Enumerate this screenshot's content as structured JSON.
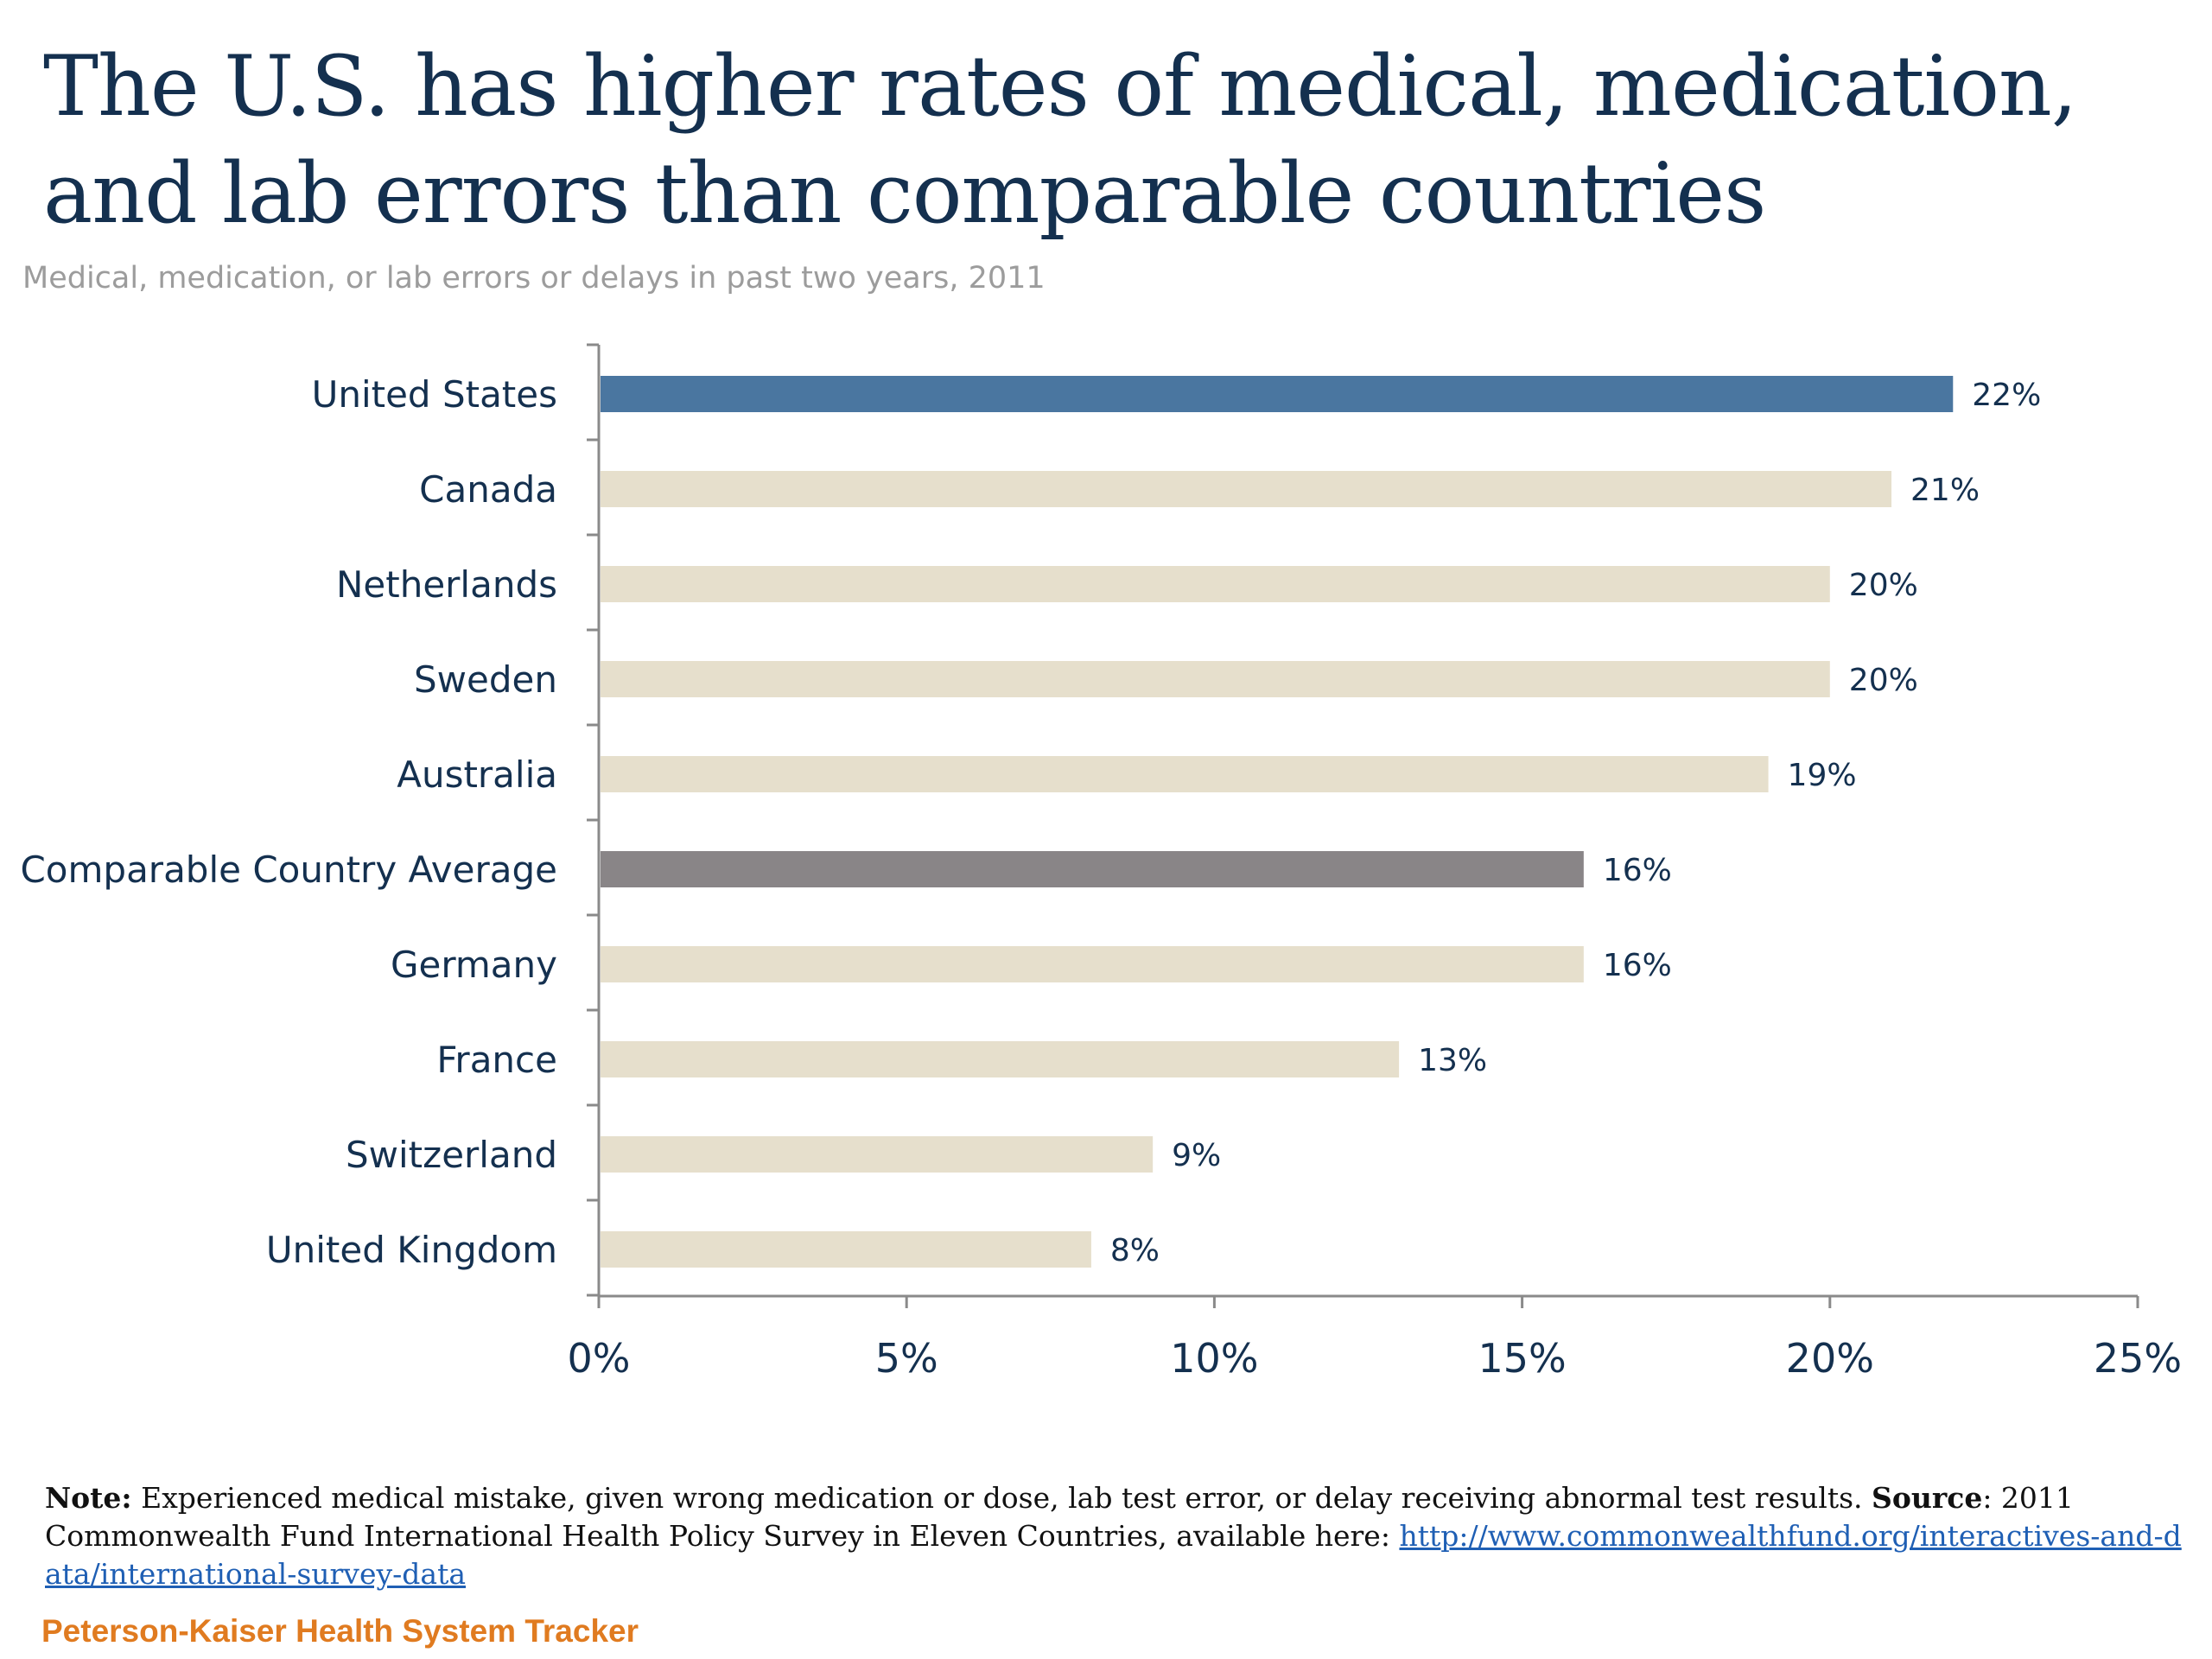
{
  "title": "The U.S. has higher rates of medical, medication, and lab errors than comparable countries",
  "subtitle": "Medical, medication, or lab errors or delays in past two years, 2011",
  "chart_data": {
    "type": "bar",
    "orientation": "horizontal",
    "categories": [
      "United States",
      "Canada",
      "Netherlands",
      "Sweden",
      "Australia",
      "Comparable Country Average",
      "Germany",
      "France",
      "Switzerland",
      "United Kingdom"
    ],
    "values": [
      22,
      21,
      20,
      20,
      19,
      16,
      16,
      13,
      9,
      8
    ],
    "data_labels": [
      "22%",
      "21%",
      "20%",
      "20%",
      "19%",
      "16%",
      "16%",
      "13%",
      "9%",
      "8%"
    ],
    "value_unit": "%",
    "xlim": [
      0,
      25
    ],
    "x_ticks": [
      0,
      5,
      10,
      15,
      20,
      25
    ],
    "x_tick_labels": [
      "0%",
      "5%",
      "10%",
      "15%",
      "20%",
      "25%"
    ],
    "xlabel": "",
    "ylabel": "",
    "grid": false,
    "legend": "none",
    "bar_colors": [
      "#4a76a0",
      "#e6dfcc",
      "#e6dfcc",
      "#e6dfcc",
      "#e6dfcc",
      "#898587",
      "#e6dfcc",
      "#e6dfcc",
      "#e6dfcc",
      "#e6dfcc"
    ]
  },
  "footnote": {
    "note_label": "Note:",
    "note_text": " Experienced medical mistake, given wrong medication or dose, lab test error, or delay receiving abnormal test results. ",
    "source_label": "Source",
    "source_text": ":  2011 Commonwealth Fund International Health Policy Survey in Eleven Countries, available here: ",
    "link_text": "http://www.commonwealthfund.org/interactives-and-data/international-survey-data"
  },
  "brand": "Peterson-Kaiser Health System Tracker",
  "colors": {
    "title": "#14304f",
    "subtitle": "#9c9c9c",
    "axis": "#8a8a8a",
    "link": "#1f5fb4",
    "brand": "#e07b20"
  }
}
